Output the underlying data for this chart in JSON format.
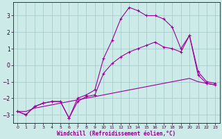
{
  "bg_color": "#cceae7",
  "grid_color": "#aacccc",
  "line_color": "#990099",
  "marker": "+",
  "xlim": [
    -0.5,
    23.5
  ],
  "ylim": [
    -3.5,
    3.8
  ],
  "yticks": [
    -3,
    -2,
    -1,
    0,
    1,
    2,
    3
  ],
  "xticks": [
    0,
    1,
    2,
    3,
    4,
    5,
    6,
    7,
    8,
    9,
    10,
    11,
    12,
    13,
    14,
    15,
    16,
    17,
    18,
    19,
    20,
    21,
    22,
    23
  ],
  "xlabel": "Windchill (Refroidissement éolien,°C)",
  "series_curvy_x": [
    0,
    1,
    2,
    3,
    4,
    5,
    6,
    7,
    8,
    9,
    10,
    11,
    12,
    13,
    14,
    15,
    16,
    17,
    18,
    19,
    20,
    21,
    22,
    23
  ],
  "series_curvy_y": [
    -2.8,
    -3.0,
    -2.5,
    -2.3,
    -2.2,
    -2.2,
    -3.2,
    -2.0,
    -1.8,
    -1.5,
    0.4,
    1.5,
    2.8,
    3.5,
    3.3,
    3.0,
    3.0,
    2.8,
    2.3,
    1.0,
    1.8,
    -0.6,
    -1.1,
    -1.2
  ],
  "series_mid_x": [
    0,
    1,
    2,
    3,
    4,
    5,
    6,
    7,
    8,
    9,
    10,
    11,
    12,
    13,
    14,
    15,
    16,
    17,
    18,
    19,
    20,
    21,
    22,
    23
  ],
  "series_mid_y": [
    -2.8,
    -3.0,
    -2.5,
    -2.3,
    -2.2,
    -2.2,
    -3.2,
    -2.2,
    -1.9,
    -1.8,
    -0.5,
    0.1,
    0.5,
    0.8,
    1.0,
    1.2,
    1.4,
    1.1,
    1.0,
    0.8,
    1.8,
    -0.4,
    -1.0,
    -1.1
  ],
  "series_flat_x": [
    0,
    1,
    2,
    3,
    4,
    5,
    6,
    7,
    8,
    9,
    10,
    11,
    12,
    13,
    14,
    15,
    16,
    17,
    18,
    19,
    20,
    21,
    22,
    23
  ],
  "series_flat_y": [
    -2.8,
    -2.8,
    -2.6,
    -2.5,
    -2.4,
    -2.3,
    -2.2,
    -2.1,
    -2.0,
    -1.9,
    -1.8,
    -1.7,
    -1.6,
    -1.5,
    -1.4,
    -1.3,
    -1.2,
    -1.1,
    -1.0,
    -0.9,
    -0.8,
    -1.0,
    -1.1,
    -1.2
  ]
}
